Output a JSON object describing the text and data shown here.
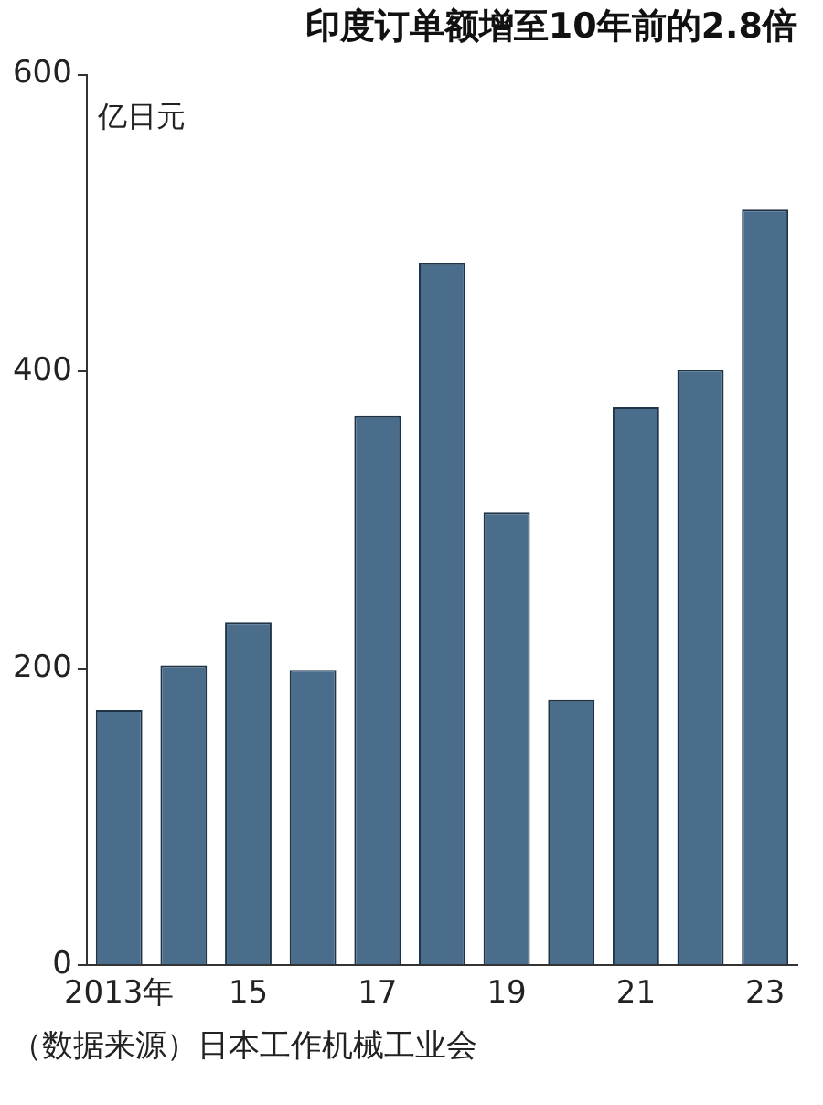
{
  "chart_data": {
    "type": "bar",
    "title": "印度订单额增至10年前的2.8倍",
    "ylabel": "亿日元",
    "categories": [
      "2013年",
      null,
      "15",
      null,
      "17",
      null,
      "19",
      null,
      "21",
      null,
      "23"
    ],
    "values": [
      172,
      202,
      231,
      199,
      370,
      473,
      305,
      179,
      376,
      401,
      509
    ],
    "color": "#4a6d8c",
    "ylim": [
      0,
      600
    ],
    "yticks": [
      0,
      200,
      400,
      600
    ],
    "grid": false,
    "annotations": [
      "（数据来源）日本工作机械工业会"
    ]
  }
}
